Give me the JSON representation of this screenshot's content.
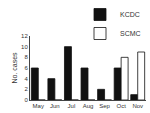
{
  "chart_data": {
    "type": "bar",
    "categories": [
      "May",
      "Jun",
      "Jul",
      "Aug",
      "Sep",
      "Oct",
      "Nov"
    ],
    "series": [
      {
        "name": "KCDC",
        "color": "#111111",
        "values": [
          6,
          4,
          10,
          6,
          2,
          6,
          1
        ]
      },
      {
        "name": "SCMC",
        "color": "#ffffff",
        "values": [
          0,
          0,
          0,
          0,
          0,
          8,
          9
        ]
      }
    ],
    "ylabel": "No. cases",
    "ylim": [
      0,
      12
    ],
    "yticks": [
      0,
      2,
      4,
      6,
      8,
      10,
      12
    ],
    "grid": false,
    "legend": "upper right"
  }
}
